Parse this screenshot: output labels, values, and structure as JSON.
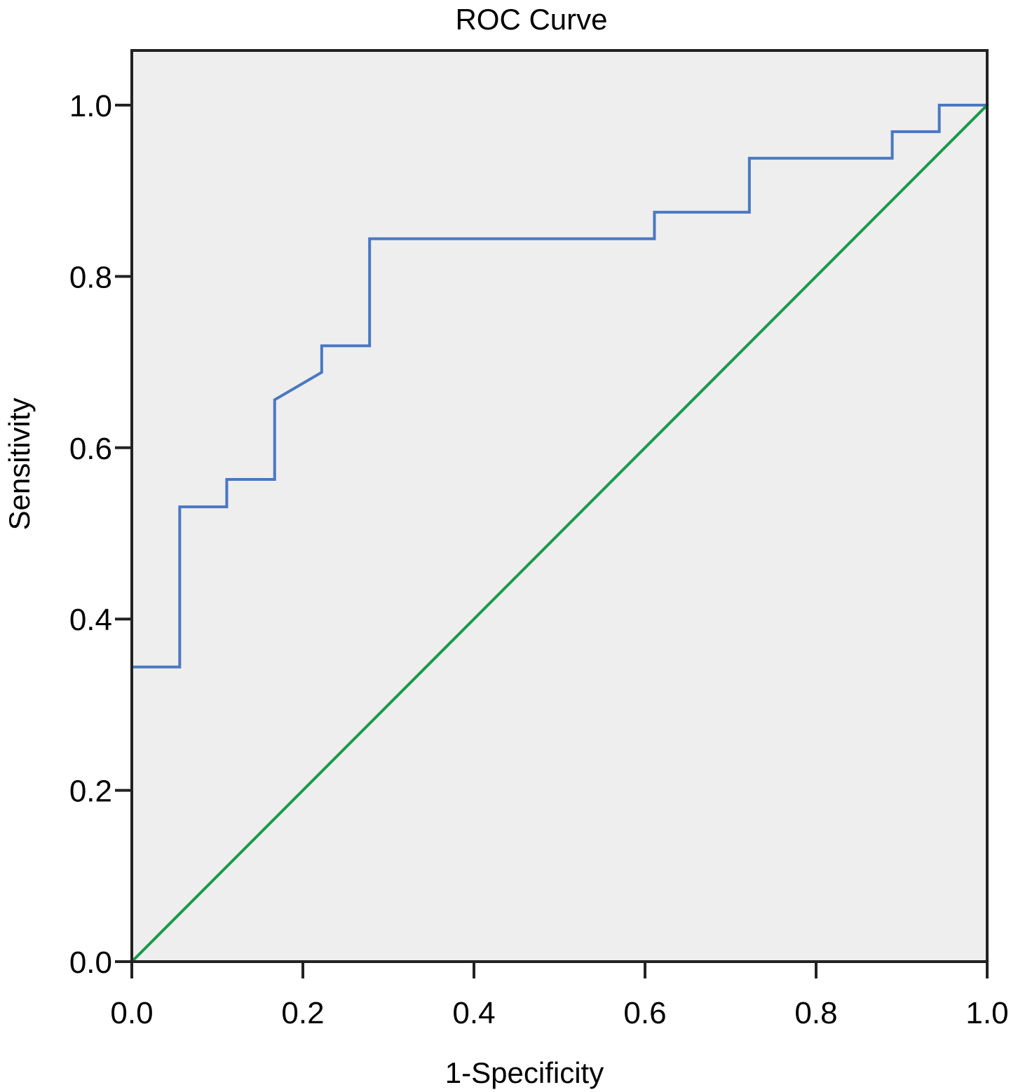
{
  "chart_data": {
    "type": "line",
    "title": "ROC Curve",
    "xlabel": "1-Specificity",
    "ylabel": "Sensitivity",
    "xlim": [
      0,
      1
    ],
    "ylim": [
      0,
      1
    ],
    "x_ticks": [
      0.0,
      0.2,
      0.4,
      0.6,
      0.8,
      1.0
    ],
    "y_ticks": [
      0.0,
      0.2,
      0.4,
      0.6,
      0.8,
      1.0
    ],
    "x_tick_labels": [
      "0.0",
      "0.2",
      "0.4",
      "0.6",
      "0.8",
      "1.0"
    ],
    "y_tick_labels": [
      "0.0",
      "0.2",
      "0.4",
      "0.6",
      "0.8",
      "1.0"
    ],
    "grid": false,
    "plot_background": "#eeeeee",
    "series": [
      {
        "color": "#4a78c2",
        "points": [
          [
            0.0,
            0.0
          ],
          [
            0.0,
            0.344
          ],
          [
            0.056,
            0.344
          ],
          [
            0.056,
            0.531
          ],
          [
            0.111,
            0.531
          ],
          [
            0.111,
            0.563
          ],
          [
            0.167,
            0.563
          ],
          [
            0.167,
            0.656
          ],
          [
            0.222,
            0.688
          ],
          [
            0.222,
            0.719
          ],
          [
            0.278,
            0.719
          ],
          [
            0.278,
            0.844
          ],
          [
            0.611,
            0.844
          ],
          [
            0.611,
            0.875
          ],
          [
            0.722,
            0.875
          ],
          [
            0.722,
            0.938
          ],
          [
            0.889,
            0.938
          ],
          [
            0.889,
            0.969
          ],
          [
            0.944,
            0.969
          ],
          [
            0.944,
            1.0
          ],
          [
            1.0,
            1.0
          ]
        ]
      },
      {
        "color": "#1a9a4a",
        "points": [
          [
            0.0,
            0.0
          ],
          [
            1.0,
            1.0
          ]
        ]
      }
    ]
  }
}
